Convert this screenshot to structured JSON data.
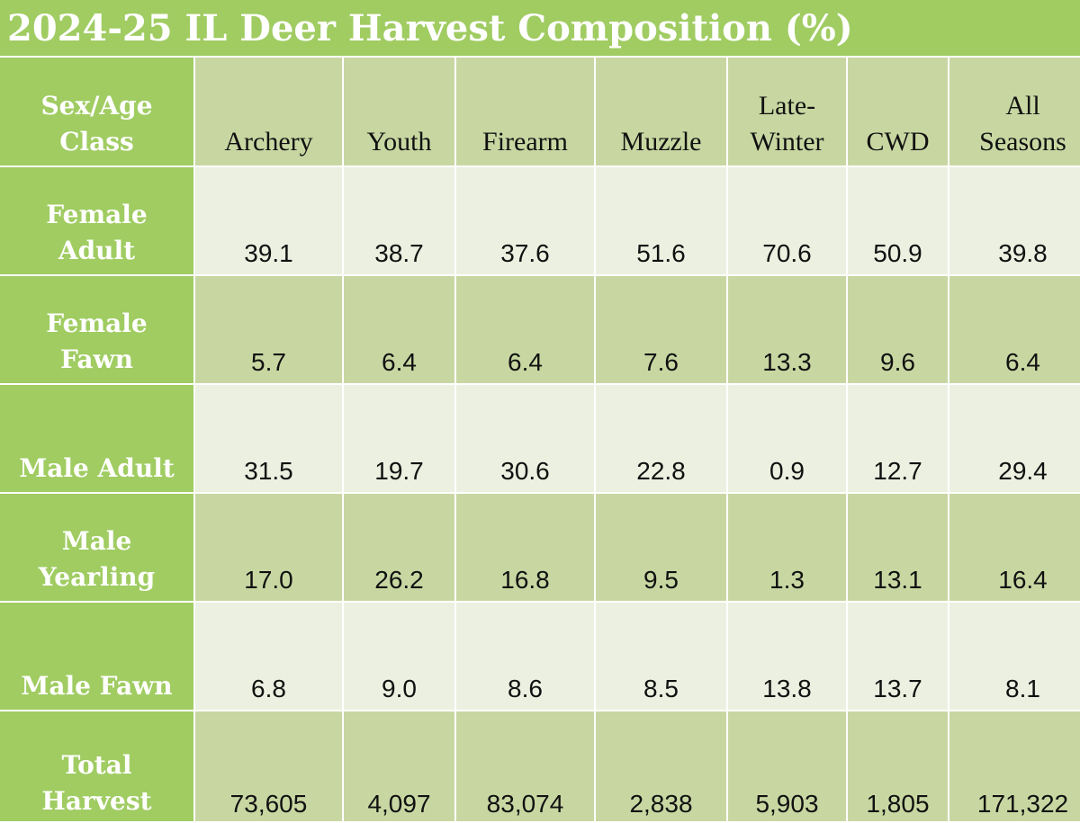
{
  "title": "2024-25 IL Deer Harvest Composition (%)",
  "colors": {
    "label_green": "#a0cc62",
    "header_fill": "#c8d7a2",
    "light_fill": "#ebf0e0"
  },
  "chart_data": {
    "type": "table",
    "title": "2024-25 IL Deer Harvest Composition (%)",
    "row_header_label": "Sex/Age Class",
    "columns": [
      "Archery",
      "Youth",
      "Firearm",
      "Muzzle",
      "Late-Winter",
      "CWD",
      "All Seasons"
    ],
    "rows": [
      {
        "label": "Female Adult",
        "values": [
          "39.1",
          "38.7",
          "37.6",
          "51.6",
          "70.6",
          "50.9",
          "39.8"
        ]
      },
      {
        "label": "Female Fawn",
        "values": [
          "5.7",
          "6.4",
          "6.4",
          "7.6",
          "13.3",
          "9.6",
          "6.4"
        ]
      },
      {
        "label": "Male Adult",
        "values": [
          "31.5",
          "19.7",
          "30.6",
          "22.8",
          "0.9",
          "12.7",
          "29.4"
        ]
      },
      {
        "label": "Male Yearling",
        "values": [
          "17.0",
          "26.2",
          "16.8",
          "9.5",
          "1.3",
          "13.1",
          "16.4"
        ]
      },
      {
        "label": "Male Fawn",
        "values": [
          "6.8",
          "9.0",
          "8.6",
          "8.5",
          "13.8",
          "13.7",
          "8.1"
        ]
      },
      {
        "label": "Total Harvest",
        "values": [
          "73,605",
          "4,097",
          "83,074",
          "2,838",
          "5,903",
          "1,805",
          "171,322"
        ]
      }
    ]
  }
}
